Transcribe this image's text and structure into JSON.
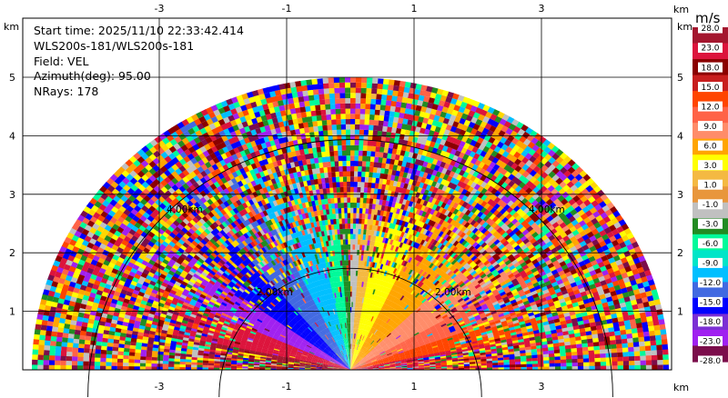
{
  "info": {
    "start_time": "Start time: 2025/11/10 22:33:42.414",
    "instrument": "WLS200s-181/WLS200s-181",
    "field": "Field: VEL",
    "azimuth": "Azimuth(deg): 95.00",
    "nrays": "NRays: 178"
  },
  "chart_data": {
    "type": "heatmap",
    "projection": "RHI half-disc, range vs height",
    "x_unit": "km",
    "y_unit": "km",
    "xlim": [
      -5.3,
      5.0
    ],
    "ylim": [
      0,
      5.5
    ],
    "x_ticks": [
      -3,
      -1,
      1,
      3
    ],
    "x_tick_labels": [
      "-3",
      "-1",
      "1",
      "3"
    ],
    "y_ticks": [
      1,
      2,
      3,
      4,
      5
    ],
    "y_tick_labels": [
      "1",
      "2",
      "3",
      "4",
      "5"
    ],
    "max_range_km": 5.0,
    "range_rings": [
      {
        "radius_km": 2.0,
        "label": "2.00km"
      },
      {
        "radius_km": 4.0,
        "label": "4.00km"
      }
    ],
    "grid": true,
    "colorbar": {
      "unit": "m/s",
      "labels": [
        "28.0",
        "23.0",
        "18.0",
        "15.0",
        "12.0",
        "9.0",
        "6.0",
        "3.0",
        "1.0",
        "-1.0",
        "-3.0",
        "-6.0",
        "-9.0",
        "-12.0",
        "-15.0",
        "-18.0",
        "-23.0",
        "-28.0"
      ],
      "colors": [
        "#a4162e",
        "#dc143c",
        "#8b0000",
        "#c81e1e",
        "#ff4500",
        "#ff6347",
        "#ff8c69",
        "#ffa500",
        "#ffff00",
        "#f4b942",
        "#e8963c",
        "#c0c0c0",
        "#228b22",
        "#00fa9a",
        "#00e5c8",
        "#00bfff",
        "#4169e1",
        "#0000ff",
        "#7b2fd4",
        "#a020f0",
        "#7b0d4b"
      ],
      "range": [
        -28.0,
        28.0
      ]
    },
    "noise_palette": [
      "#dc143c",
      "#8b0000",
      "#ff4500",
      "#ffd700",
      "#ffff00",
      "#0000ff",
      "#00bfff",
      "#00fa9a",
      "#a020f0",
      "#7b0d4b",
      "#ff6347",
      "#ffa500",
      "#228b22",
      "#c0c0c0"
    ],
    "sectors": [
      {
        "elev_from": 0,
        "elev_to": 12,
        "color": "#dc143c"
      },
      {
        "elev_from": 12,
        "elev_to": 20,
        "color": "#ff4500"
      },
      {
        "elev_from": 20,
        "elev_to": 30,
        "color": "#ff6347"
      },
      {
        "elev_from": 30,
        "elev_to": 45,
        "color": "#ff8c69"
      },
      {
        "elev_from": 45,
        "elev_to": 65,
        "color": "#ffa500"
      },
      {
        "elev_from": 65,
        "elev_to": 80,
        "color": "#ffff00"
      },
      {
        "elev_from": 80,
        "elev_to": 86,
        "color": "#f4b942"
      },
      {
        "elev_from": 86,
        "elev_to": 90,
        "color": "#c0c0c0"
      },
      {
        "elev_from": 90,
        "elev_to": 94,
        "color": "#228b22"
      },
      {
        "elev_from": 94,
        "elev_to": 102,
        "color": "#00fa9a"
      },
      {
        "elev_from": 102,
        "elev_to": 116,
        "color": "#00bfff"
      },
      {
        "elev_from": 116,
        "elev_to": 130,
        "color": "#4169e1"
      },
      {
        "elev_from": 130,
        "elev_to": 144,
        "color": "#0000ff"
      },
      {
        "elev_from": 144,
        "elev_to": 156,
        "color": "#a020f0"
      },
      {
        "elev_from": 156,
        "elev_to": 168,
        "color": "#dc143c"
      },
      {
        "elev_from": 168,
        "elev_to": 180,
        "color": "#a4162e"
      }
    ]
  }
}
